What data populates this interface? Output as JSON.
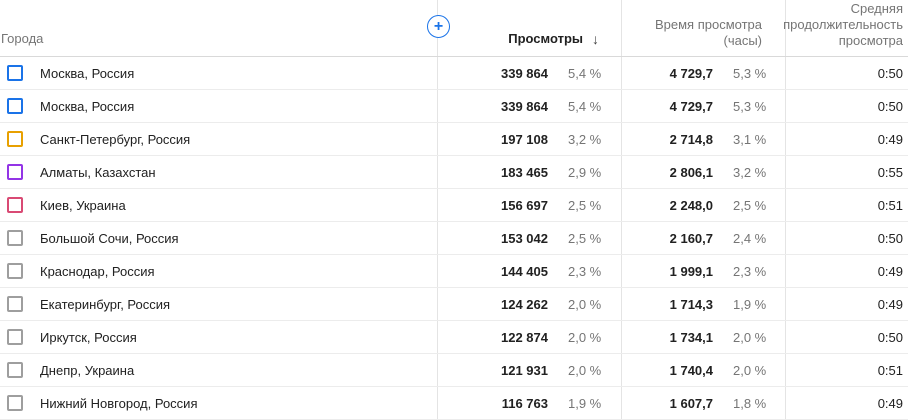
{
  "header": {
    "cities_label": "Города",
    "views_label": "Просмотры",
    "sort_icon": "↓",
    "watch_time_label": "Время просмотра (часы)",
    "avg_duration_label": "Средняя продолжительность просмотра",
    "add_button_glyph": "+"
  },
  "colors": {
    "accent_blue": "#1a73e8",
    "series_orange": "#e8a000",
    "series_purple": "#9334e6",
    "series_pink": "#d94a74",
    "checkbox_gray": "#9e9e9e"
  },
  "rows": [
    {
      "city": "Москва, Россия",
      "checkbox_color": "#1a73e8",
      "views": "339 864",
      "views_pct": "5,4 %",
      "watch_time": "4 729,7",
      "watch_time_pct": "5,3 %",
      "avg_duration": "0:50"
    },
    {
      "city": "Москва, Россия",
      "checkbox_color": "#1a73e8",
      "views": "339 864",
      "views_pct": "5,4 %",
      "watch_time": "4 729,7",
      "watch_time_pct": "5,3 %",
      "avg_duration": "0:50"
    },
    {
      "city": "Санкт-Петербург, Россия",
      "checkbox_color": "#e8a000",
      "views": "197 108",
      "views_pct": "3,2 %",
      "watch_time": "2 714,8",
      "watch_time_pct": "3,1 %",
      "avg_duration": "0:49"
    },
    {
      "city": "Алматы, Казахстан",
      "checkbox_color": "#9334e6",
      "views": "183 465",
      "views_pct": "2,9 %",
      "watch_time": "2 806,1",
      "watch_time_pct": "3,2 %",
      "avg_duration": "0:55"
    },
    {
      "city": "Киев, Украина",
      "checkbox_color": "#d94a74",
      "views": "156 697",
      "views_pct": "2,5 %",
      "watch_time": "2 248,0",
      "watch_time_pct": "2,5 %",
      "avg_duration": "0:51"
    },
    {
      "city": "Большой Сочи, Россия",
      "checkbox_color": "#9e9e9e",
      "views": "153 042",
      "views_pct": "2,5 %",
      "watch_time": "2 160,7",
      "watch_time_pct": "2,4 %",
      "avg_duration": "0:50"
    },
    {
      "city": "Краснодар, Россия",
      "checkbox_color": "#9e9e9e",
      "views": "144 405",
      "views_pct": "2,3 %",
      "watch_time": "1 999,1",
      "watch_time_pct": "2,3 %",
      "avg_duration": "0:49"
    },
    {
      "city": "Екатеринбург, Россия",
      "checkbox_color": "#9e9e9e",
      "views": "124 262",
      "views_pct": "2,0 %",
      "watch_time": "1 714,3",
      "watch_time_pct": "1,9 %",
      "avg_duration": "0:49"
    },
    {
      "city": "Иркутск, Россия",
      "checkbox_color": "#9e9e9e",
      "views": "122 874",
      "views_pct": "2,0 %",
      "watch_time": "1 734,1",
      "watch_time_pct": "2,0 %",
      "avg_duration": "0:50"
    },
    {
      "city": "Днепр, Украина",
      "checkbox_color": "#9e9e9e",
      "views": "121 931",
      "views_pct": "2,0 %",
      "watch_time": "1 740,4",
      "watch_time_pct": "2,0 %",
      "avg_duration": "0:51"
    },
    {
      "city": "Нижний Новгород, Россия",
      "checkbox_color": "#9e9e9e",
      "views": "116 763",
      "views_pct": "1,9 %",
      "watch_time": "1 607,7",
      "watch_time_pct": "1,8 %",
      "avg_duration": "0:49"
    }
  ]
}
